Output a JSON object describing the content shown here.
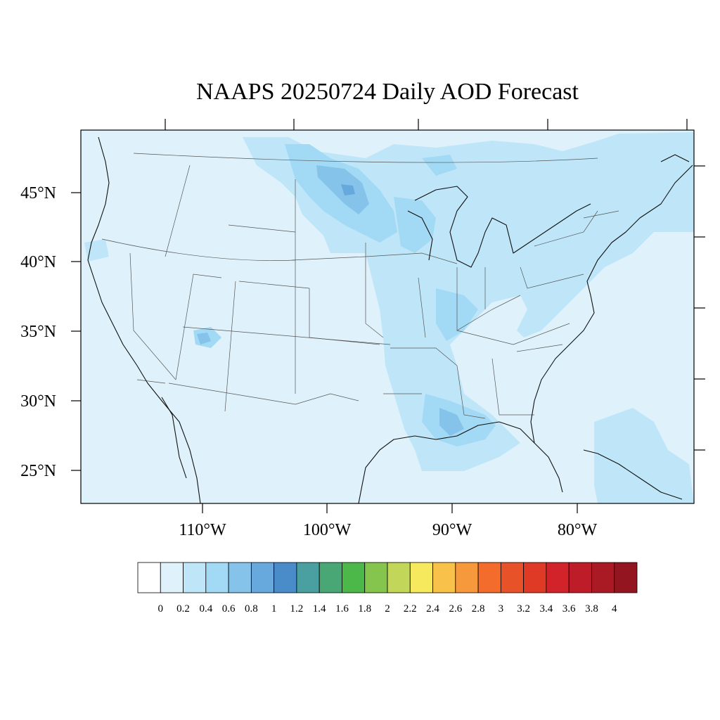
{
  "title": "NAAPS 20250724 Daily AOD Forecast",
  "lat_labels": [
    "45°N",
    "40°N",
    "35°N",
    "30°N",
    "25°N"
  ],
  "lon_labels": [
    "110°W",
    "100°W",
    "90°W",
    "80°W"
  ],
  "colorbar": {
    "labels": [
      "0",
      "0.2",
      "0.4",
      "0.6",
      "0.8",
      "1",
      "1.2",
      "1.4",
      "1.6",
      "1.8",
      "2",
      "2.2",
      "2.4",
      "2.6",
      "2.8",
      "3",
      "3.2",
      "3.4",
      "3.6",
      "3.8",
      "4"
    ],
    "colors": [
      "#ffffff",
      "#dff2fb",
      "#bfe6f8",
      "#a2d9f4",
      "#86c3ea",
      "#67a9dc",
      "#4a8cca",
      "#4aa0a0",
      "#48a775",
      "#4cb849",
      "#85c54d",
      "#c2d65a",
      "#f7e95e",
      "#f8c14a",
      "#f6983c",
      "#f36c2b",
      "#e85228",
      "#de3a26",
      "#d2232a",
      "#be1c28",
      "#a91a25",
      "#931520"
    ]
  },
  "map": {
    "background_aod_color": "#dff2fb",
    "lon_range": [
      -119,
      -70
    ],
    "lat_range": [
      23,
      49
    ]
  }
}
